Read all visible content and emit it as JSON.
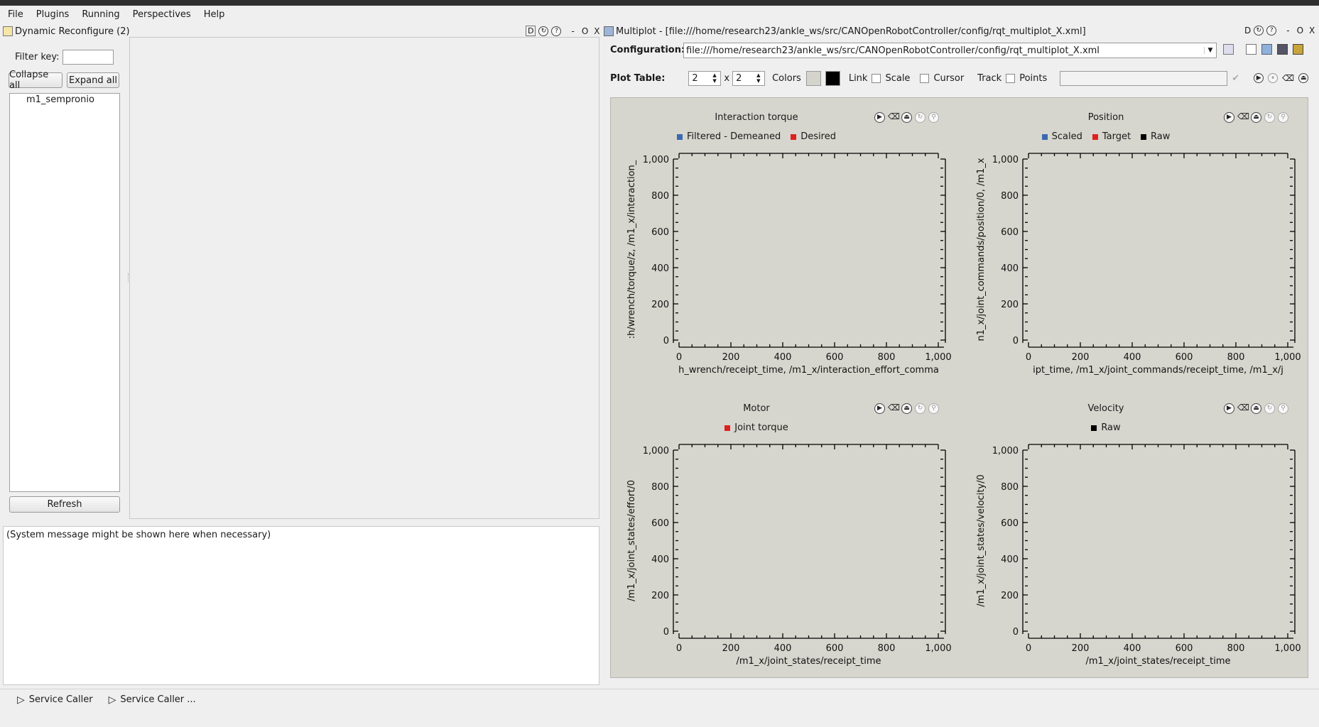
{
  "menu": [
    "File",
    "Plugins",
    "Running",
    "Perspectives",
    "Help"
  ],
  "left_dock": {
    "title": "Dynamic Reconfigure (2)",
    "title_buttons": [
      "D",
      "-",
      "O",
      "X"
    ],
    "filter_label": "Filter key:",
    "filter_value": "",
    "collapse_label": "Collapse all",
    "expand_label": "Expand all",
    "tree_items": [
      "m1_sempronio"
    ],
    "refresh_label": "Refresh",
    "system_message": "(System message might be shown here when necessary)"
  },
  "multiplot": {
    "title": "Multiplot - [file:///home/research23/ankle_ws/src/CANOpenRobotController/config/rqt_multiplot_X.xml]",
    "title_buttons": [
      "D",
      "-",
      "O",
      "X"
    ],
    "config_label": "Configuration:",
    "config_value": "file:///home/research23/ankle_ws/src/CANOpenRobotController/config/rqt_multiplot_X.xml",
    "plot_table_label": "Plot Table:",
    "rows": "2",
    "cols": "2",
    "x_sep": "x",
    "colors_label": "Colors",
    "link_label": "Link",
    "scale_label": "Scale",
    "cursor_label": "Cursor",
    "track_label": "Track",
    "points_label": "Points",
    "colors": {
      "background": "#d6d6ce",
      "swatch_light": "#d4d4cc",
      "swatch_dark": "#000000"
    }
  },
  "status_bar": {
    "items": [
      "Service Caller",
      "Service Caller ..."
    ]
  },
  "chart_data": [
    {
      "type": "line",
      "title": "Interaction torque",
      "series": [
        {
          "name": "Filtered - Demeaned",
          "color": "#3a6ab0",
          "values": []
        },
        {
          "name": "Desired",
          "color": "#e02020",
          "values": []
        }
      ],
      "xlabel": "h_wrench/receipt_time, /m1_x/interaction_effort_comma",
      "ylabel": ":h/wrench/torque/z, /m1_x/interaction_",
      "xlim": [
        0,
        1000
      ],
      "ylim": [
        0,
        1000
      ],
      "xticks": [
        "0",
        "200",
        "400",
        "600",
        "800",
        "1,000"
      ],
      "yticks": [
        "0",
        "200",
        "400",
        "600",
        "800",
        "1,000"
      ]
    },
    {
      "type": "line",
      "title": "Position",
      "series": [
        {
          "name": "Scaled",
          "color": "#3a6ab0",
          "values": []
        },
        {
          "name": "Target",
          "color": "#e02020",
          "values": []
        },
        {
          "name": "Raw",
          "color": "#000000",
          "values": []
        }
      ],
      "xlabel": "ipt_time, /m1_x/joint_commands/receipt_time, /m1_x/j",
      "ylabel": "n1_x/joint_commands/position/0, /m1_x",
      "xlim": [
        0,
        1000
      ],
      "ylim": [
        0,
        1000
      ],
      "xticks": [
        "0",
        "200",
        "400",
        "600",
        "800",
        "1,000"
      ],
      "yticks": [
        "0",
        "200",
        "400",
        "600",
        "800",
        "1,000"
      ]
    },
    {
      "type": "line",
      "title": "Motor",
      "series": [
        {
          "name": "Joint torque",
          "color": "#e02020",
          "values": []
        }
      ],
      "xlabel": "/m1_x/joint_states/receipt_time",
      "ylabel": "/m1_x/joint_states/effort/0",
      "xlim": [
        0,
        1000
      ],
      "ylim": [
        0,
        1000
      ],
      "xticks": [
        "0",
        "200",
        "400",
        "600",
        "800",
        "1,000"
      ],
      "yticks": [
        "0",
        "200",
        "400",
        "600",
        "800",
        "1,000"
      ]
    },
    {
      "type": "line",
      "title": "Velocity",
      "series": [
        {
          "name": "Raw",
          "color": "#000000",
          "values": []
        }
      ],
      "xlabel": "/m1_x/joint_states/receipt_time",
      "ylabel": "/m1_x/joint_states/velocity/0",
      "xlim": [
        0,
        1000
      ],
      "ylim": [
        0,
        1000
      ],
      "xticks": [
        "0",
        "200",
        "400",
        "600",
        "800",
        "1,000"
      ],
      "yticks": [
        "0",
        "200",
        "400",
        "600",
        "800",
        "1,000"
      ]
    }
  ]
}
